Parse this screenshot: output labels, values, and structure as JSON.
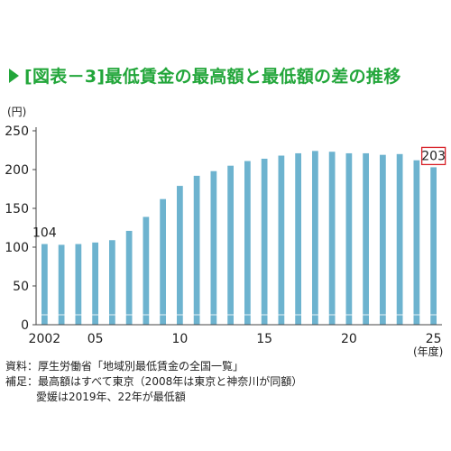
{
  "title": "[図表－3]最低賃金の最高額と最低額の差の推移",
  "notes": {
    "source": "資料：厚生労働省「地域別最低賃金の全国一覧」",
    "supplement_1": "補足：最高額はすべて東京（2008年は東京と神奈川が同額）",
    "supplement_2": "愛媛は2019年、22年が最低額"
  },
  "chart_data": {
    "type": "bar",
    "title": "[図表－3]最低賃金の最高額と最低額の差の推移",
    "ylabel": "(円)",
    "xlabel": "(年度)",
    "ylim": [
      0,
      250
    ],
    "yticks": [
      0,
      50,
      100,
      150,
      200,
      250
    ],
    "categories": [
      "2002",
      "2003",
      "2004",
      "2005",
      "2006",
      "2007",
      "2008",
      "2009",
      "2010",
      "2011",
      "2012",
      "2013",
      "2014",
      "2015",
      "2016",
      "2017",
      "2018",
      "2019",
      "2020",
      "2021",
      "2022",
      "2023",
      "2024",
      "2025"
    ],
    "xtick_labels": [
      {
        "category": "2002",
        "label": "2002"
      },
      {
        "category": "2005",
        "label": "05"
      },
      {
        "category": "2010",
        "label": "10"
      },
      {
        "category": "2015",
        "label": "15"
      },
      {
        "category": "2020",
        "label": "20"
      },
      {
        "category": "2025",
        "label": "25"
      }
    ],
    "values": [
      104,
      103,
      104,
      106,
      109,
      121,
      139,
      162,
      179,
      192,
      198,
      205,
      211,
      214,
      218,
      221,
      224,
      223,
      221,
      221,
      219,
      220,
      212,
      203
    ],
    "annotations": [
      {
        "category": "2002",
        "text": "104",
        "boxed": false
      },
      {
        "category": "2025",
        "text": "203",
        "boxed": true
      }
    ],
    "bar_color": "#6db3cf",
    "annotation_box_color": "#d8232a",
    "grid": false
  }
}
